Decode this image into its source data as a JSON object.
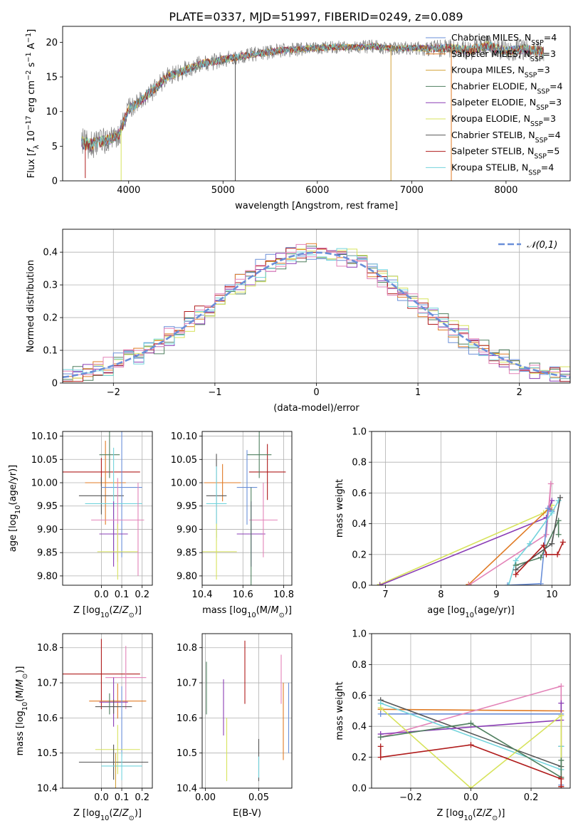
{
  "figure": {
    "title": "PLATE=0337, MJD=51997, FIBERID=0249, z=0.089"
  },
  "palette": {
    "chabrier_miles": "#6a8fd8",
    "salpeter_miles": "#e07b25",
    "kroupa_miles": "#d2a23a",
    "chabrier_elodie": "#4f7f5f",
    "salpeter_elodie": "#8a3db5",
    "kroupa_elodie": "#d7e35c",
    "chabrier_stelib": "#555555",
    "salpeter_stelib": "#b01c1c",
    "kroupa_stelib": "#72d3dc",
    "pink": "#e383b8",
    "gray": "#808080",
    "normal_curve": "#6a8fd8"
  },
  "chart_data": [
    {
      "id": "spectrum",
      "type": "line",
      "xlabel": "wavelength [Angstrom, rest frame]",
      "ylabel": "Flux [f_λ 10^-17 erg cm^-2 s^-1 A^-1]",
      "xlim": [
        3300,
        8680
      ],
      "ylim": [
        0,
        22.3
      ],
      "xticks": [
        4000,
        5000,
        6000,
        7000,
        8000
      ],
      "yticks": [
        0,
        5,
        10,
        15,
        20
      ],
      "grid": false,
      "legend_position": "top-right",
      "legend": [
        {
          "label": "Chabrier MILES, N_SSP=4",
          "color_key": "chabrier_miles"
        },
        {
          "label": "Salpeter MILES, N_SSP=3",
          "color_key": "salpeter_miles"
        },
        {
          "label": "Kroupa MILES, N_SSP=3",
          "color_key": "kroupa_miles"
        },
        {
          "label": "Chabrier ELODIE, N_SSP=4",
          "color_key": "chabrier_elodie"
        },
        {
          "label": "Salpeter ELODIE, N_SSP=3",
          "color_key": "salpeter_elodie"
        },
        {
          "label": "Kroupa ELODIE, N_SSP=3",
          "color_key": "kroupa_elodie"
        },
        {
          "label": "Chabrier STELIB, N_SSP=4",
          "color_key": "chabrier_stelib"
        },
        {
          "label": "Salpeter STELIB, N_SSP=5",
          "color_key": "salpeter_stelib"
        },
        {
          "label": "Kroupa STELIB, N_SSP=4",
          "color_key": "kroupa_stelib"
        }
      ],
      "continuum": {
        "x": [
          3500,
          3600,
          3700,
          3800,
          3900,
          4000,
          4100,
          4200,
          4300,
          4400,
          4500,
          4600,
          4700,
          4800,
          4900,
          5000,
          5200,
          5400,
          5600,
          5800,
          6000,
          6200,
          6400,
          6600,
          6800,
          7000,
          7200,
          7400,
          7600,
          7800,
          8000,
          8200,
          8400
        ],
        "y": [
          5.5,
          5.2,
          5.6,
          6.0,
          6.8,
          10.3,
          11.2,
          12.5,
          13.5,
          15.0,
          15.5,
          16.0,
          16.5,
          17.0,
          17.2,
          17.5,
          18.0,
          18.4,
          18.8,
          19.0,
          19.2,
          19.3,
          19.3,
          19.4,
          19.1,
          19.2,
          19.1,
          19.2,
          18.8,
          19.5,
          18.7,
          19.0,
          18.6
        ]
      },
      "noise": {
        "x": [
          3500,
          4000,
          5000,
          6000,
          7000,
          7500,
          8400
        ],
        "amplitude": [
          2.2,
          1.6,
          1.2,
          1.0,
          1.0,
          1.5,
          1.6
        ]
      },
      "spikes": [
        {
          "x": 3540,
          "y": 0.4
        },
        {
          "x": 3920,
          "y": 0.0
        },
        {
          "x": 5130,
          "y": 0.0
        },
        {
          "x": 6780,
          "y": 0.0
        },
        {
          "x": 7420,
          "y": 0.0
        }
      ]
    },
    {
      "id": "residuals",
      "type": "bar",
      "xlabel": "(data-model)/error",
      "ylabel": "Normed distribution",
      "xlim": [
        -2.5,
        2.5
      ],
      "ylim": [
        0,
        0.47
      ],
      "xticks": [
        -2,
        -1,
        0,
        1,
        2
      ],
      "yticks": [
        0.0,
        0.1,
        0.2,
        0.3,
        0.4
      ],
      "grid": true,
      "bin_width": 0.1,
      "legend": [
        {
          "label": "𝒩(0,1)",
          "color_key": "normal_curve"
        }
      ],
      "legend_position": "top-right",
      "series": [
        {
          "color_key": "chabrier_miles",
          "offset": 0.05,
          "phase": 0.0
        },
        {
          "color_key": "salpeter_miles",
          "offset": 0.02,
          "phase": 1.1
        },
        {
          "color_key": "chabrier_elodie",
          "offset": -0.03,
          "phase": 2.3
        },
        {
          "color_key": "salpeter_elodie",
          "offset": 0.0,
          "phase": 3.7
        },
        {
          "color_key": "kroupa_elodie",
          "offset": -0.06,
          "phase": 4.9
        },
        {
          "color_key": "salpeter_stelib",
          "offset": 0.04,
          "phase": 5.6
        },
        {
          "color_key": "kroupa_stelib",
          "offset": -0.01,
          "phase": 6.8
        },
        {
          "color_key": "pink",
          "offset": 0.03,
          "phase": 8.1
        }
      ]
    },
    {
      "id": "age_vs_z",
      "type": "scatter",
      "xlabel": "Z [log10(Z/Z⊙)]",
      "ylabel": "age [log10(age/yr)]",
      "xlim": [
        -0.19,
        0.25
      ],
      "ylim": [
        9.78,
        10.11
      ],
      "xticks": [
        0.0,
        0.1,
        0.2
      ],
      "xticklabels": [
        "0.0",
        "0.1",
        "0.2"
      ],
      "yticks": [
        9.8,
        9.85,
        9.9,
        9.95,
        10.0,
        10.05,
        10.1
      ],
      "yticklabels": [
        "9.80",
        "9.85",
        "9.90",
        "9.95",
        "10.00",
        "10.05",
        "10.10"
      ],
      "grid": true,
      "points": [
        {
          "x": 0.0,
          "y": 10.023,
          "xerr": 0.19,
          "yerr": 0.03,
          "color_key": "salpeter_stelib"
        },
        {
          "x": 0.02,
          "y": 10.0,
          "xerr": 0.1,
          "yerr": 0.09,
          "color_key": "salpeter_miles"
        },
        {
          "x": 0.04,
          "y": 10.06,
          "xerr": 0.05,
          "yerr": 0.05,
          "color_key": "chabrier_elodie"
        },
        {
          "x": 0.0,
          "y": 9.972,
          "xerr": 0.11,
          "yerr": 0.04,
          "color_key": "chabrier_stelib"
        },
        {
          "x": 0.1,
          "y": 9.99,
          "xerr": 0.1,
          "yerr": 0.15,
          "color_key": "chabrier_miles"
        },
        {
          "x": 0.06,
          "y": 9.955,
          "xerr": 0.14,
          "yerr": 0.12,
          "color_key": "kroupa_stelib"
        },
        {
          "x": 0.06,
          "y": 9.89,
          "xerr": 0.07,
          "yerr": 0.07,
          "color_key": "salpeter_elodie"
        },
        {
          "x": 0.08,
          "y": 9.92,
          "xerr": 0.13,
          "yerr": 0.09,
          "color_key": "pink"
        },
        {
          "x": 0.08,
          "y": 9.852,
          "xerr": 0.1,
          "yerr": 0.06,
          "color_key": "kroupa_elodie"
        },
        {
          "x": 0.18,
          "y": 9.9,
          "xerr": 0.0,
          "yerr": 0.1,
          "color_key": "pink"
        }
      ]
    },
    {
      "id": "age_vs_mass",
      "type": "scatter",
      "xlabel": "mass [log10(M/M⊙)]",
      "ylabel": "",
      "xlim": [
        10.4,
        10.84
      ],
      "ylim": [
        9.78,
        10.11
      ],
      "xticks": [
        10.4,
        10.6,
        10.8
      ],
      "xticklabels": [
        "10.4",
        "10.6",
        "10.8"
      ],
      "yticks": [
        9.8,
        9.85,
        9.9,
        9.95,
        10.0,
        10.05,
        10.1
      ],
      "yticklabels": [
        "9.80",
        "9.85",
        "9.90",
        "9.95",
        "10.00",
        "10.05",
        "10.10"
      ],
      "grid": true,
      "points": [
        {
          "x": 10.72,
          "y": 10.023,
          "xerr": 0.09,
          "yerr": 0.06,
          "color_key": "salpeter_stelib"
        },
        {
          "x": 10.5,
          "y": 10.0,
          "xerr": 0.09,
          "yerr": 0.04,
          "color_key": "salpeter_miles"
        },
        {
          "x": 10.68,
          "y": 10.06,
          "xerr": 0.06,
          "yerr": 0.05,
          "color_key": "chabrier_elodie"
        },
        {
          "x": 10.47,
          "y": 9.972,
          "xerr": 0.05,
          "yerr": 0.09,
          "color_key": "chabrier_stelib"
        },
        {
          "x": 10.62,
          "y": 9.99,
          "xerr": 0.05,
          "yerr": 0.08,
          "color_key": "chabrier_miles"
        },
        {
          "x": 10.47,
          "y": 9.955,
          "xerr": 0.05,
          "yerr": 0.08,
          "color_key": "kroupa_stelib"
        },
        {
          "x": 10.64,
          "y": 9.89,
          "xerr": 0.07,
          "yerr": 0.07,
          "color_key": "salpeter_elodie"
        },
        {
          "x": 10.7,
          "y": 9.92,
          "xerr": 0.07,
          "yerr": 0.08,
          "color_key": "pink"
        },
        {
          "x": 10.47,
          "y": 9.852,
          "xerr": 0.1,
          "yerr": 0.06,
          "color_key": "kroupa_elodie"
        },
        {
          "x": 10.64,
          "y": 9.85,
          "xerr": 0.0,
          "yerr": 0.14,
          "color_key": "chabrier_elodie"
        }
      ]
    },
    {
      "id": "mass_weight_vs_age",
      "type": "line",
      "xlabel": "age [log10(age/yr)]",
      "ylabel": "mass weight",
      "xlim": [
        6.75,
        10.33
      ],
      "ylim": [
        0.0,
        1.0
      ],
      "xticks": [
        7,
        8,
        9,
        10
      ],
      "yticks": [
        0.0,
        0.2,
        0.4,
        0.6,
        0.8,
        1.0
      ],
      "yticklabels": [
        "0.0",
        "0.2",
        "0.4",
        "0.6",
        "0.8",
        "1.0"
      ],
      "grid": true,
      "series": [
        {
          "color_key": "kroupa_elodie",
          "x": [
            6.9,
            9.85,
            10.0
          ],
          "y": [
            0.005,
            0.47,
            0.52
          ]
        },
        {
          "color_key": "salpeter_elodie",
          "x": [
            6.9,
            9.9,
            10.0
          ],
          "y": [
            0.0,
            0.44,
            0.55
          ]
        },
        {
          "color_key": "salpeter_miles",
          "x": [
            8.5,
            9.95,
            10.0
          ],
          "y": [
            0.005,
            0.5,
            0.49
          ]
        },
        {
          "color_key": "pink",
          "x": [
            8.5,
            9.9,
            9.98,
            9.95
          ],
          "y": [
            0.0,
            0.33,
            0.66,
            0.5
          ]
        },
        {
          "color_key": "chabrier_miles",
          "x": [
            9.2,
            9.8,
            9.93,
            10.0
          ],
          "y": [
            0.0,
            0.01,
            0.5,
            0.48
          ]
        },
        {
          "color_key": "kroupa_stelib",
          "x": [
            9.22,
            9.35,
            9.6,
            10.0,
            10.12
          ],
          "y": [
            0.0,
            0.16,
            0.27,
            0.47,
            0.55
          ]
        },
        {
          "color_key": "chabrier_elodie",
          "x": [
            9.35,
            9.8,
            10.12,
            10.12
          ],
          "y": [
            0.13,
            0.18,
            0.42,
            0.33
          ]
        },
        {
          "color_key": "chabrier_stelib",
          "x": [
            9.35,
            10.0,
            10.15
          ],
          "y": [
            0.1,
            0.27,
            0.57
          ]
        },
        {
          "color_key": "salpeter_stelib",
          "x": [
            9.35,
            9.85,
            9.9,
            10.1,
            10.2
          ],
          "y": [
            0.07,
            0.26,
            0.2,
            0.2,
            0.28
          ]
        }
      ]
    },
    {
      "id": "mass_vs_z",
      "type": "scatter",
      "xlabel": "Z [log10(Z/Z⊙)]",
      "ylabel": "mass [log10(M/M⊙)]",
      "xlim": [
        -0.19,
        0.25
      ],
      "ylim": [
        10.4,
        10.84
      ],
      "xticks": [
        0.0,
        0.1,
        0.2
      ],
      "xticklabels": [
        "0.0",
        "0.1",
        "0.2"
      ],
      "yticks": [
        10.4,
        10.5,
        10.6,
        10.7,
        10.8
      ],
      "yticklabels": [
        "10.4",
        "10.5",
        "10.6",
        "10.7",
        "10.8"
      ],
      "grid": true,
      "points": [
        {
          "x": 0.0,
          "y": 10.725,
          "xerr": 0.19,
          "yerr": 0.1,
          "color_key": "salpeter_stelib"
        },
        {
          "x": 0.12,
          "y": 10.715,
          "xerr": 0.1,
          "yerr": 0.09,
          "color_key": "pink"
        },
        {
          "x": 0.08,
          "y": 10.648,
          "xerr": 0.14,
          "yerr": 0.05,
          "color_key": "salpeter_miles"
        },
        {
          "x": 0.06,
          "y": 10.645,
          "xerr": 0.07,
          "yerr": 0.07,
          "color_key": "salpeter_elodie"
        },
        {
          "x": 0.06,
          "y": 10.632,
          "xerr": 0.09,
          "yerr": 0.02,
          "color_key": "chabrier_stelib"
        },
        {
          "x": 0.04,
          "y": 10.64,
          "xerr": 0.0,
          "yerr": 0.03,
          "color_key": "chabrier_elodie"
        },
        {
          "x": 0.1,
          "y": 10.59,
          "xerr": 0.0,
          "yerr": 0.1,
          "color_key": "chabrier_miles"
        },
        {
          "x": 0.08,
          "y": 10.51,
          "xerr": 0.11,
          "yerr": 0.07,
          "color_key": "kroupa_elodie"
        },
        {
          "x": 0.06,
          "y": 10.474,
          "xerr": 0.17,
          "yerr": 0.05,
          "color_key": "chabrier_stelib"
        },
        {
          "x": 0.1,
          "y": 10.463,
          "xerr": 0.1,
          "yerr": 0.04,
          "color_key": "kroupa_stelib"
        },
        {
          "x": 0.07,
          "y": 10.45,
          "xerr": 0.0,
          "yerr": 0.05,
          "color_key": "kroupa_miles"
        }
      ]
    },
    {
      "id": "mass_vs_ebv",
      "type": "scatter",
      "xlabel": "E(B-V)",
      "ylabel": "",
      "xlim": [
        -0.003,
        0.081
      ],
      "ylim": [
        10.4,
        10.84
      ],
      "xticks": [
        0.0,
        0.05
      ],
      "xticklabels": [
        "0.00",
        "0.05"
      ],
      "yticks": [
        10.4,
        10.5,
        10.6,
        10.7,
        10.8
      ],
      "yticklabels": [
        "10.4",
        "10.5",
        "10.6",
        "10.7",
        "10.8"
      ],
      "grid": true,
      "points": [
        {
          "x": 0.001,
          "y": 10.685,
          "xerr": 0,
          "yerr": 0.075,
          "color_key": "chabrier_elodie"
        },
        {
          "x": 0.017,
          "y": 10.63,
          "xerr": 0,
          "yerr": 0.08,
          "color_key": "salpeter_elodie"
        },
        {
          "x": 0.02,
          "y": 10.51,
          "xerr": 0,
          "yerr": 0.09,
          "color_key": "kroupa_elodie"
        },
        {
          "x": 0.037,
          "y": 10.73,
          "xerr": 0,
          "yerr": 0.09,
          "color_key": "salpeter_stelib"
        },
        {
          "x": 0.05,
          "y": 10.48,
          "xerr": 0,
          "yerr": 0.06,
          "color_key": "chabrier_stelib"
        },
        {
          "x": 0.05,
          "y": 10.46,
          "xerr": 0,
          "yerr": 0.03,
          "color_key": "kroupa_stelib"
        },
        {
          "x": 0.071,
          "y": 10.71,
          "xerr": 0,
          "yerr": 0.07,
          "color_key": "pink"
        },
        {
          "x": 0.073,
          "y": 10.59,
          "xerr": 0,
          "yerr": 0.11,
          "color_key": "salpeter_miles"
        },
        {
          "x": 0.078,
          "y": 10.6,
          "xerr": 0,
          "yerr": 0.1,
          "color_key": "chabrier_miles"
        }
      ]
    },
    {
      "id": "mass_weight_vs_z",
      "type": "line",
      "xlabel": "Z [log10(Z/Z⊙)]",
      "ylabel": "mass weight",
      "xlim": [
        -0.33,
        0.33
      ],
      "ylim": [
        0.0,
        1.0
      ],
      "xticks": [
        -0.2,
        0.0,
        0.2
      ],
      "xticklabels": [
        "−0.2",
        "0.0",
        "0.2"
      ],
      "yticks": [
        0.0,
        0.2,
        0.4,
        0.6,
        0.8,
        1.0
      ],
      "yticklabels": [
        "0.0",
        "0.2",
        "0.4",
        "0.6",
        "0.8",
        "1.0"
      ],
      "grid": true,
      "series": [
        {
          "color_key": "salpeter_miles",
          "x": [
            -0.3,
            0.3,
            0.3
          ],
          "y": [
            0.51,
            0.5,
            0.01
          ]
        },
        {
          "color_key": "chabrier_miles",
          "x": [
            -0.3,
            0.3,
            0.3
          ],
          "y": [
            0.48,
            0.48,
            0.02
          ]
        },
        {
          "color_key": "pink",
          "x": [
            -0.3,
            0.3,
            0.3
          ],
          "y": [
            0.33,
            0.66,
            0.0
          ]
        },
        {
          "color_key": "chabrier_stelib",
          "x": [
            -0.3,
            0.3,
            0.3
          ],
          "y": [
            0.57,
            0.14,
            0.27
          ]
        },
        {
          "color_key": "kroupa_stelib",
          "x": [
            -0.3,
            0.3,
            0.3
          ],
          "y": [
            0.55,
            0.12,
            0.27
          ]
        },
        {
          "color_key": "salpeter_elodie",
          "x": [
            -0.3,
            0.3,
            0.3
          ],
          "y": [
            0.35,
            0.44,
            0.55
          ]
        },
        {
          "color_key": "kroupa_elodie",
          "x": [
            -0.3,
            0.0,
            0.3,
            0.3
          ],
          "y": [
            0.52,
            0.0,
            0.47,
            0.01
          ]
        },
        {
          "color_key": "chabrier_elodie",
          "x": [
            -0.3,
            0.0,
            0.3,
            0.3
          ],
          "y": [
            0.33,
            0.42,
            0.07,
            0.18
          ]
        },
        {
          "color_key": "salpeter_stelib",
          "x": [
            -0.3,
            -0.3,
            0.0,
            0.3,
            0.3
          ],
          "y": [
            0.27,
            0.2,
            0.28,
            0.06,
            0.01
          ]
        }
      ]
    }
  ]
}
